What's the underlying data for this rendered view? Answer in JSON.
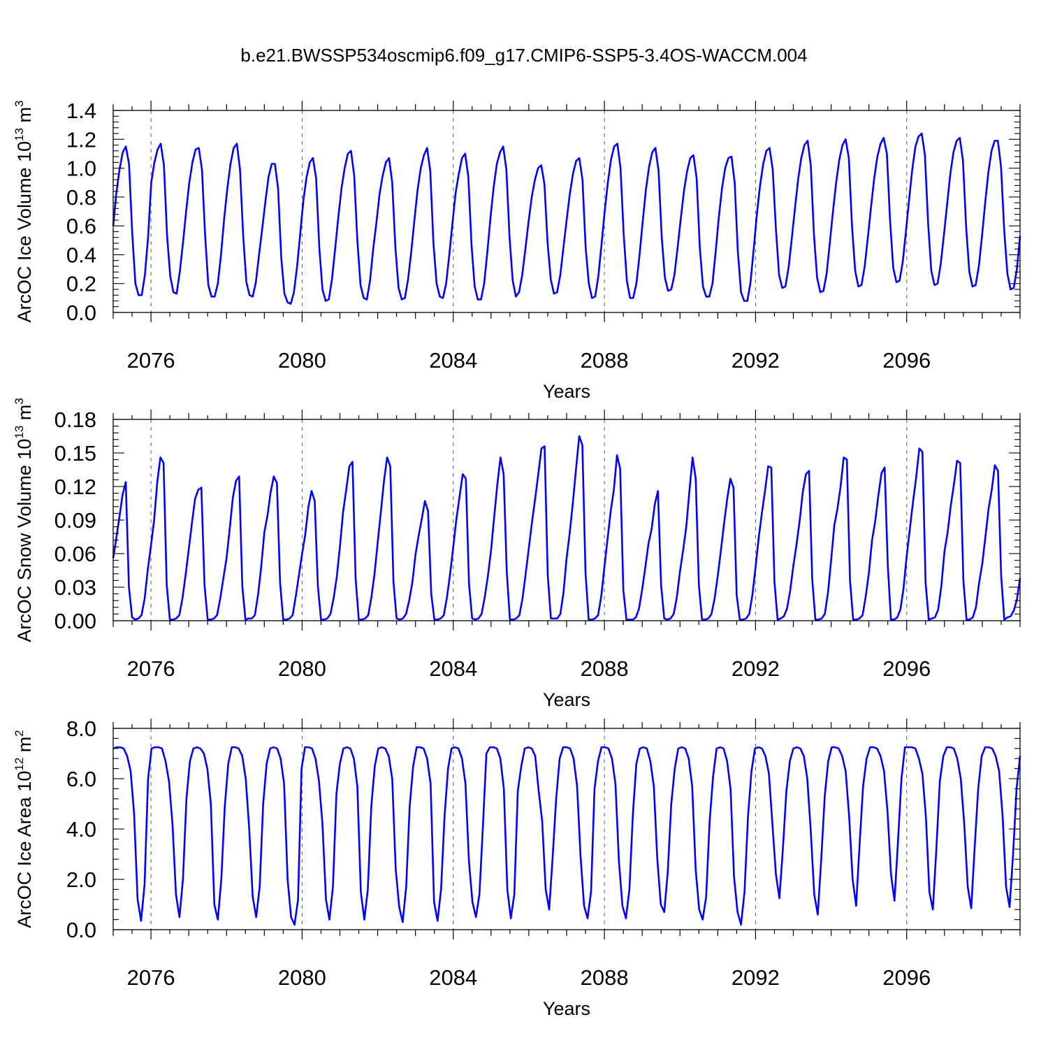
{
  "figure": {
    "title": "b.e21.BWSSP534oscmip6.f09_g17.CMIP6-SSP5-3.4OS-WACCM.004"
  },
  "style": {
    "line_color": "#0000ff",
    "axis_color": "#000000",
    "gridline_color": "#555555"
  },
  "chart_data": [
    {
      "type": "line",
      "ylabel": {
        "main": "ArcOC Ice Volume 10",
        "sup1": "13",
        "mid": " m",
        "sup2": "3"
      },
      "xlabel": "Years",
      "xlim": [
        2075.0,
        2099.0
      ],
      "ylim": [
        0.0,
        1.4
      ],
      "xticks": [
        2076,
        2080,
        2084,
        2088,
        2092,
        2096
      ],
      "xtick_labels": [
        "2076",
        "2080",
        "2084",
        "2088",
        "2092",
        "2096"
      ],
      "yticks": [
        0.0,
        0.2,
        0.4,
        0.6,
        0.8,
        1.0,
        1.2,
        1.4
      ],
      "ytick_labels": [
        "0.0",
        "0.2",
        "0.4",
        "0.6",
        "0.8",
        "1.0",
        "1.2",
        "1.4"
      ],
      "vertical_dashed_lines_at": [
        2076,
        2080,
        2084,
        2088,
        2092,
        2096
      ],
      "annual_peaks": [
        1.15,
        1.17,
        1.14,
        1.17,
        1.03,
        1.07,
        1.12,
        1.08,
        1.14,
        1.11,
        1.15,
        1.02,
        1.07,
        1.17,
        1.14,
        1.09,
        1.08,
        1.14,
        1.19,
        1.2,
        1.21,
        1.24,
        1.21,
        1.19
      ],
      "annual_minima": [
        0.12,
        0.14,
        0.11,
        0.12,
        0.07,
        0.09,
        0.1,
        0.1,
        0.11,
        0.09,
        0.12,
        0.14,
        0.11,
        0.1,
        0.16,
        0.11,
        0.08,
        0.17,
        0.14,
        0.19,
        0.21,
        0.2,
        0.18,
        0.17
      ],
      "series": [
        {
          "values": [
            0.6,
            0.83,
            0.99,
            1.11,
            1.15,
            1.03,
            0.55,
            0.2,
            0.12,
            0.12,
            0.26,
            0.52,
            0.9,
            1.04,
            1.13,
            1.17,
            1.02,
            0.53,
            0.25,
            0.14,
            0.13,
            0.28,
            0.48,
            0.7,
            0.9,
            1.04,
            1.13,
            1.14,
            0.99,
            0.53,
            0.19,
            0.11,
            0.11,
            0.2,
            0.4,
            0.65,
            0.86,
            1.03,
            1.14,
            1.17,
            0.99,
            0.53,
            0.21,
            0.12,
            0.11,
            0.21,
            0.4,
            0.58,
            0.77,
            0.94,
            1.03,
            1.03,
            0.86,
            0.38,
            0.13,
            0.07,
            0.06,
            0.14,
            0.32,
            0.55,
            0.78,
            0.94,
            1.04,
            1.07,
            0.93,
            0.45,
            0.16,
            0.08,
            0.09,
            0.23,
            0.44,
            0.66,
            0.86,
            1.0,
            1.1,
            1.12,
            0.95,
            0.5,
            0.19,
            0.1,
            0.09,
            0.22,
            0.44,
            0.62,
            0.82,
            0.95,
            1.04,
            1.07,
            0.9,
            0.45,
            0.17,
            0.09,
            0.1,
            0.23,
            0.42,
            0.64,
            0.85,
            1.0,
            1.09,
            1.14,
            0.98,
            0.48,
            0.2,
            0.11,
            0.1,
            0.2,
            0.4,
            0.62,
            0.83,
            0.96,
            1.07,
            1.1,
            0.94,
            0.47,
            0.18,
            0.09,
            0.09,
            0.2,
            0.42,
            0.66,
            0.87,
            1.03,
            1.11,
            1.15,
            0.99,
            0.52,
            0.22,
            0.11,
            0.14,
            0.26,
            0.44,
            0.63,
            0.8,
            0.92,
            1.0,
            1.02,
            0.89,
            0.48,
            0.23,
            0.13,
            0.14,
            0.26,
            0.45,
            0.64,
            0.82,
            0.96,
            1.05,
            1.07,
            0.92,
            0.45,
            0.2,
            0.1,
            0.11,
            0.25,
            0.47,
            0.7,
            0.9,
            1.06,
            1.15,
            1.17,
            1.0,
            0.54,
            0.22,
            0.1,
            0.1,
            0.2,
            0.4,
            0.63,
            0.85,
            1.01,
            1.11,
            1.14,
            0.98,
            0.52,
            0.24,
            0.15,
            0.16,
            0.26,
            0.45,
            0.65,
            0.84,
            0.98,
            1.07,
            1.09,
            0.93,
            0.45,
            0.18,
            0.11,
            0.11,
            0.2,
            0.42,
            0.66,
            0.86,
            1.0,
            1.07,
            1.08,
            0.9,
            0.42,
            0.14,
            0.08,
            0.08,
            0.21,
            0.44,
            0.68,
            0.88,
            1.03,
            1.12,
            1.14,
            0.99,
            0.58,
            0.26,
            0.17,
            0.18,
            0.31,
            0.51,
            0.72,
            0.92,
            1.07,
            1.16,
            1.19,
            1.02,
            0.54,
            0.24,
            0.14,
            0.15,
            0.27,
            0.48,
            0.7,
            0.9,
            1.06,
            1.16,
            1.2,
            1.07,
            0.6,
            0.29,
            0.18,
            0.19,
            0.32,
            0.52,
            0.73,
            0.93,
            1.08,
            1.17,
            1.21,
            1.1,
            0.64,
            0.31,
            0.21,
            0.22,
            0.35,
            0.56,
            0.78,
            0.99,
            1.15,
            1.22,
            1.24,
            1.09,
            0.62,
            0.29,
            0.19,
            0.2,
            0.34,
            0.54,
            0.75,
            0.96,
            1.11,
            1.19,
            1.21,
            1.05,
            0.59,
            0.28,
            0.18,
            0.19,
            0.32,
            0.53,
            0.76,
            0.97,
            1.12,
            1.19,
            1.19,
            1.01,
            0.57,
            0.27,
            0.16,
            0.17,
            0.3,
            0.53
          ]
        }
      ]
    },
    {
      "type": "line",
      "ylabel": {
        "main": "ArcOC Snow Volume 10",
        "sup1": "13",
        "mid": " m",
        "sup2": "3"
      },
      "xlabel": "Years",
      "xlim": [
        2075.0,
        2099.0
      ],
      "ylim": [
        0.0,
        0.18
      ],
      "xticks": [
        2076,
        2080,
        2084,
        2088,
        2092,
        2096
      ],
      "xtick_labels": [
        "2076",
        "2080",
        "2084",
        "2088",
        "2092",
        "2096"
      ],
      "yticks": [
        0.0,
        0.03,
        0.06,
        0.09,
        0.12,
        0.15,
        0.18
      ],
      "ytick_labels": [
        "0.00",
        "0.03",
        "0.06",
        "0.09",
        "0.12",
        "0.15",
        "0.18"
      ],
      "vertical_dashed_lines_at": [
        2076,
        2080,
        2084,
        2088,
        2092,
        2096
      ],
      "annual_peaks": [
        0.125,
        0.146,
        0.119,
        0.129,
        0.129,
        0.116,
        0.142,
        0.146,
        0.107,
        0.131,
        0.146,
        0.156,
        0.165,
        0.148,
        0.116,
        0.146,
        0.127,
        0.138,
        0.134,
        0.146,
        0.137,
        0.154,
        0.143,
        0.139
      ],
      "series": [
        {
          "values": [
            0.056,
            0.074,
            0.093,
            0.113,
            0.124,
            0.03,
            0.003,
            0.001,
            0.002,
            0.005,
            0.02,
            0.046,
            0.067,
            0.09,
            0.124,
            0.146,
            0.141,
            0.032,
            0.001,
            0.001,
            0.002,
            0.005,
            0.02,
            0.041,
            0.064,
            0.087,
            0.109,
            0.117,
            0.119,
            0.032,
            0.001,
            0.001,
            0.002,
            0.005,
            0.02,
            0.038,
            0.056,
            0.082,
            0.11,
            0.125,
            0.129,
            0.031,
            0.001,
            0.002,
            0.002,
            0.005,
            0.023,
            0.048,
            0.079,
            0.094,
            0.115,
            0.129,
            0.123,
            0.034,
            0.001,
            0.001,
            0.002,
            0.005,
            0.022,
            0.041,
            0.06,
            0.077,
            0.102,
            0.116,
            0.107,
            0.031,
            0.001,
            0.001,
            0.002,
            0.006,
            0.02,
            0.039,
            0.066,
            0.097,
            0.117,
            0.138,
            0.142,
            0.037,
            0.001,
            0.001,
            0.002,
            0.005,
            0.021,
            0.042,
            0.07,
            0.097,
            0.125,
            0.146,
            0.138,
            0.035,
            0.002,
            0.001,
            0.002,
            0.006,
            0.018,
            0.034,
            0.059,
            0.076,
            0.091,
            0.107,
            0.098,
            0.024,
            0.001,
            0.001,
            0.002,
            0.005,
            0.021,
            0.042,
            0.066,
            0.091,
            0.111,
            0.131,
            0.127,
            0.033,
            0.002,
            0.001,
            0.002,
            0.006,
            0.021,
            0.04,
            0.063,
            0.093,
            0.122,
            0.146,
            0.131,
            0.043,
            0.001,
            0.001,
            0.002,
            0.005,
            0.02,
            0.042,
            0.065,
            0.088,
            0.109,
            0.131,
            0.154,
            0.156,
            0.041,
            0.002,
            0.002,
            0.002,
            0.006,
            0.025,
            0.056,
            0.079,
            0.106,
            0.136,
            0.165,
            0.157,
            0.043,
            0.001,
            0.001,
            0.002,
            0.005,
            0.022,
            0.048,
            0.073,
            0.098,
            0.117,
            0.148,
            0.136,
            0.028,
            0.001,
            0.001,
            0.001,
            0.003,
            0.011,
            0.028,
            0.048,
            0.069,
            0.082,
            0.104,
            0.116,
            0.032,
            0.002,
            0.001,
            0.002,
            0.006,
            0.021,
            0.044,
            0.063,
            0.084,
            0.116,
            0.146,
            0.127,
            0.032,
            0.001,
            0.001,
            0.002,
            0.006,
            0.02,
            0.04,
            0.063,
            0.087,
            0.109,
            0.127,
            0.119,
            0.023,
            0.001,
            0.001,
            0.002,
            0.006,
            0.023,
            0.048,
            0.074,
            0.096,
            0.116,
            0.138,
            0.137,
            0.035,
            0.001,
            0.002,
            0.004,
            0.011,
            0.027,
            0.049,
            0.068,
            0.089,
            0.115,
            0.131,
            0.134,
            0.037,
            0.001,
            0.001,
            0.002,
            0.006,
            0.025,
            0.054,
            0.085,
            0.1,
            0.12,
            0.146,
            0.144,
            0.036,
            0.001,
            0.001,
            0.002,
            0.005,
            0.022,
            0.043,
            0.072,
            0.089,
            0.112,
            0.132,
            0.137,
            0.049,
            0.001,
            0.001,
            0.003,
            0.01,
            0.029,
            0.058,
            0.082,
            0.106,
            0.128,
            0.154,
            0.151,
            0.034,
            0.001,
            0.002,
            0.003,
            0.01,
            0.031,
            0.062,
            0.079,
            0.103,
            0.122,
            0.143,
            0.141,
            0.036,
            0.001,
            0.001,
            0.003,
            0.012,
            0.034,
            0.051,
            0.075,
            0.1,
            0.117,
            0.139,
            0.134,
            0.04,
            0.001,
            0.003,
            0.004,
            0.009,
            0.019,
            0.038
          ]
        }
      ]
    },
    {
      "type": "line",
      "ylabel": {
        "main": "ArcOC Ice Area 10",
        "sup1": "12",
        "mid": " m",
        "sup2": "2"
      },
      "xlabel": "Years",
      "xlim": [
        2075.0,
        2099.0
      ],
      "ylim": [
        0.0,
        8.0
      ],
      "xticks": [
        2076,
        2080,
        2084,
        2088,
        2092,
        2096
      ],
      "xtick_labels": [
        "2076",
        "2080",
        "2084",
        "2088",
        "2092",
        "2096"
      ],
      "yticks": [
        0.0,
        2.0,
        4.0,
        6.0,
        8.0
      ],
      "ytick_labels": [
        "0.0",
        "2.0",
        "4.0",
        "6.0",
        "8.0"
      ],
      "vertical_dashed_lines_at": [
        2076,
        2080,
        2084,
        2088,
        2092,
        2096
      ],
      "annual_minima": [
        0.35,
        0.5,
        0.4,
        0.5,
        0.2,
        0.4,
        0.4,
        0.3,
        0.35,
        0.5,
        0.45,
        0.8,
        0.4,
        0.45,
        0.7,
        0.4,
        0.2,
        1.25,
        0.6,
        0.95,
        1.15,
        0.8,
        0.85,
        0.9
      ],
      "series": [
        {
          "values": [
            7.2,
            7.25,
            7.25,
            7.2,
            6.9,
            6.3,
            4.6,
            1.2,
            0.35,
            1.8,
            6.0,
            7.2,
            7.25,
            7.25,
            7.2,
            6.7,
            5.9,
            4.2,
            1.4,
            0.5,
            2.0,
            5.2,
            6.7,
            7.2,
            7.25,
            7.2,
            7.0,
            6.4,
            5.0,
            1.0,
            0.4,
            2.0,
            4.9,
            6.6,
            7.25,
            7.25,
            7.2,
            6.9,
            6.0,
            4.0,
            1.3,
            0.5,
            1.7,
            5.0,
            6.6,
            7.2,
            7.25,
            7.2,
            6.8,
            5.8,
            2.0,
            0.5,
            0.2,
            1.2,
            6.4,
            7.25,
            7.25,
            7.2,
            6.8,
            5.9,
            4.2,
            1.2,
            0.4,
            1.7,
            5.4,
            6.6,
            7.2,
            7.25,
            7.2,
            6.8,
            5.7,
            1.5,
            0.4,
            1.6,
            4.9,
            6.5,
            7.2,
            7.25,
            7.2,
            6.9,
            6.0,
            2.4,
            0.9,
            0.3,
            1.7,
            4.9,
            6.5,
            7.25,
            7.25,
            7.2,
            6.8,
            5.8,
            1.1,
            0.35,
            1.6,
            4.5,
            6.4,
            7.2,
            7.25,
            7.2,
            6.8,
            5.8,
            2.7,
            1.1,
            0.5,
            1.4,
            4.1,
            7.0,
            7.25,
            7.25,
            7.2,
            6.8,
            5.6,
            1.6,
            0.45,
            1.4,
            5.5,
            6.5,
            7.2,
            7.25,
            7.2,
            6.9,
            5.5,
            4.3,
            1.6,
            0.8,
            2.9,
            5.2,
            6.8,
            7.25,
            7.25,
            7.2,
            6.8,
            5.7,
            2.9,
            0.95,
            0.45,
            1.5,
            5.6,
            6.7,
            7.25,
            7.25,
            7.2,
            6.8,
            5.8,
            2.7,
            0.95,
            0.45,
            1.6,
            4.6,
            6.6,
            7.2,
            7.25,
            7.2,
            6.7,
            5.7,
            2.8,
            1.0,
            0.7,
            2.3,
            5.0,
            6.4,
            7.2,
            7.25,
            7.2,
            6.8,
            5.7,
            2.4,
            0.8,
            0.4,
            1.3,
            4.3,
            6.1,
            7.2,
            7.25,
            7.2,
            6.7,
            5.6,
            2.1,
            0.7,
            0.2,
            1.5,
            4.5,
            6.3,
            7.2,
            7.25,
            7.2,
            6.9,
            6.2,
            4.2,
            2.2,
            1.25,
            3.2,
            5.5,
            6.7,
            7.2,
            7.25,
            7.2,
            6.9,
            6.0,
            3.9,
            1.4,
            0.6,
            2.8,
            5.3,
            6.7,
            7.25,
            7.25,
            7.2,
            6.9,
            6.3,
            4.5,
            2.0,
            0.95,
            3.4,
            5.7,
            6.8,
            7.25,
            7.25,
            7.2,
            6.9,
            6.3,
            4.7,
            2.2,
            1.15,
            3.5,
            6.0,
            7.25,
            7.25,
            7.25,
            7.2,
            6.8,
            6.2,
            4.5,
            1.5,
            0.8,
            3.2,
            5.9,
            6.9,
            7.25,
            7.25,
            7.2,
            6.8,
            6.0,
            4.2,
            1.7,
            0.85,
            3.3,
            5.6,
            6.9,
            7.25,
            7.25,
            7.2,
            6.9,
            6.3,
            4.5,
            1.7,
            0.9,
            3.0,
            5.6,
            6.9
          ]
        }
      ]
    }
  ]
}
